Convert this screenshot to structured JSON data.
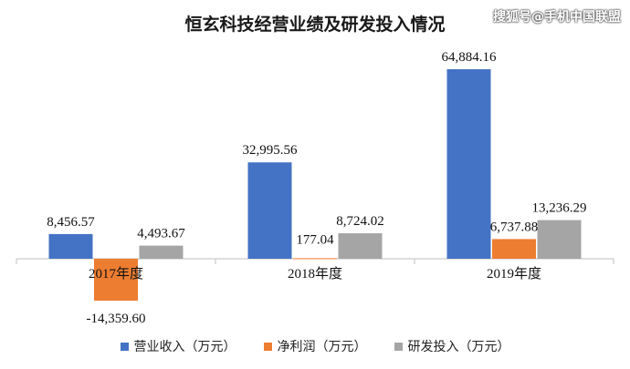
{
  "chart_data": {
    "type": "bar",
    "title": "恒玄科技经营业绩及研发投入情况",
    "categories": [
      "2017年度",
      "2018年度",
      "2019年度"
    ],
    "series": [
      {
        "name": "营业收入（万元）",
        "values": [
          8456.57,
          32995.56,
          64884.16
        ],
        "labels": [
          "8,456.57",
          "32,995.56",
          "64,884.16"
        ],
        "color": "#4472C4"
      },
      {
        "name": "净利润（万元）",
        "values": [
          -14359.6,
          177.04,
          6737.88
        ],
        "labels": [
          "-14,359.60",
          "177.04",
          "6,737.88"
        ],
        "color": "#ED7D31"
      },
      {
        "name": "研发投入（万元）",
        "values": [
          4493.67,
          8724.02,
          13236.29
        ],
        "labels": [
          "4,493.67",
          "8,724.02",
          "13,236.29"
        ],
        "color": "#A5A5A5"
      }
    ],
    "ylim": [
      -16000,
      72000
    ],
    "grid": false,
    "legend_position": "bottom"
  },
  "watermark": "搜狐号@手机中国联盟"
}
